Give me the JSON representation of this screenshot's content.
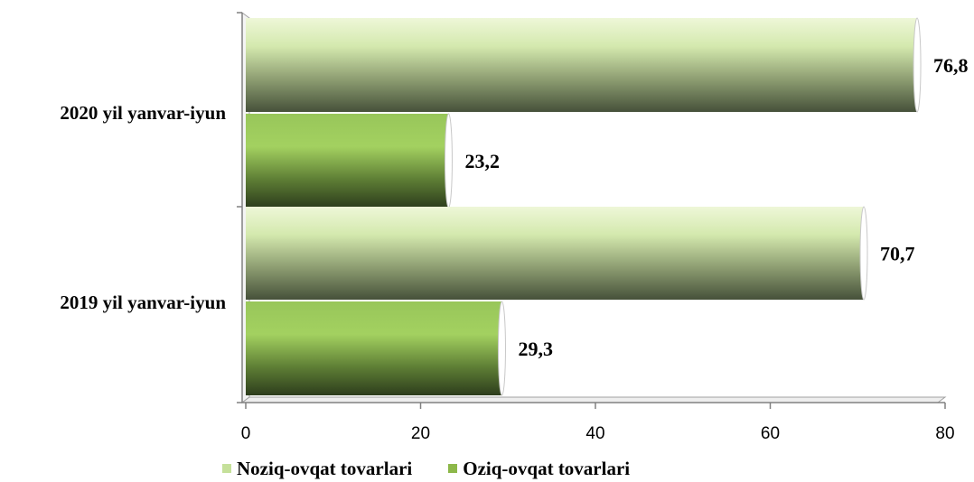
{
  "chart_data": {
    "type": "bar",
    "orientation": "horizontal",
    "categories": [
      "2020 yil yanvar-iyun",
      "2019 yil yanvar-iyun"
    ],
    "series": [
      {
        "name": "Noziq-ovqat tovarlari",
        "values": [
          76.8,
          70.7
        ],
        "labels": [
          "76,8",
          "70,7"
        ],
        "color": "#c5e09a"
      },
      {
        "name": "Oziq-ovqat tovarlari",
        "values": [
          23.2,
          29.3
        ],
        "labels": [
          "23,2",
          "29,3"
        ],
        "color": "#8db84a"
      }
    ],
    "xlim": [
      0,
      80
    ],
    "xticks": [
      {
        "value": 0,
        "label": "0"
      },
      {
        "value": 20,
        "label": "20"
      },
      {
        "value": 40,
        "label": "40"
      },
      {
        "value": 60,
        "label": "60"
      },
      {
        "value": 80,
        "label": "80"
      }
    ],
    "grid": false,
    "legend_position": "bottom"
  }
}
